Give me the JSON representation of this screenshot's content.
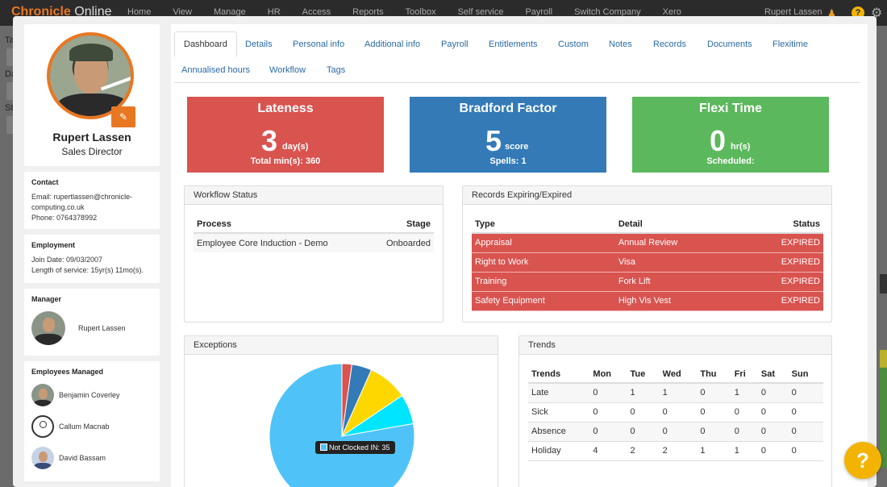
{
  "topnav": {
    "brand_primary": "Chronicle",
    "brand_secondary": " Online",
    "items": [
      "Home",
      "View",
      "Manage",
      "HR",
      "Access",
      "Reports",
      "Toolbox",
      "Self service",
      "Payroll",
      "Switch Company",
      "Xero"
    ],
    "user": "Rupert Lassen"
  },
  "background": {
    "left_labels": [
      "Ta",
      "Da",
      "Sta"
    ]
  },
  "profile": {
    "name": "Rupert Lassen",
    "job_title": "Sales Director",
    "contact_heading": "Contact",
    "email_line_1": "Email: rupertlassen@chronicle-",
    "email_line_2": "computing.co.uk",
    "phone": "Phone: 0764378992",
    "employment_heading": "Employment",
    "join_date": "Join Date: 09/03/2007",
    "length_of_service": "Length of service: 15yr(s) 11mo(s).",
    "manager_heading": "Manager",
    "manager_name": "Rupert Lassen",
    "employees_heading": "Employees Managed",
    "employees": [
      "Benjamin Coverley",
      "Callum Macnab",
      "David Bassam"
    ]
  },
  "tabs": {
    "row1": [
      "Dashboard",
      "Details",
      "Personal info",
      "Additional info",
      "Payroll",
      "Entitlements",
      "Custom",
      "Notes",
      "Records",
      "Documents",
      "Flexitime"
    ],
    "row2": [
      "Annualised hours",
      "Workflow",
      "Tags"
    ]
  },
  "stats": {
    "lateness": {
      "title": "Lateness",
      "value": "3",
      "unit": "day(s)",
      "sub": "Total min(s): 360",
      "color": "#d9534f"
    },
    "bradford": {
      "title": "Bradford Factor",
      "value": "5",
      "unit": "score",
      "sub": "Spells: 1",
      "color": "#337ab7"
    },
    "flexi": {
      "title": "Flexi Time",
      "value": "0",
      "unit": "hr(s)",
      "sub": "Scheduled:",
      "color": "#5cb85c"
    }
  },
  "workflow": {
    "heading": "Workflow Status",
    "columns": [
      "Process",
      "Stage"
    ],
    "rows": [
      [
        "Employee Core Induction - Demo",
        "Onboarded"
      ]
    ]
  },
  "records": {
    "heading": "Records Expiring/Expired",
    "columns": [
      "Type",
      "Detail",
      "Status"
    ],
    "rows": [
      [
        "Appraisal",
        "Annual Review",
        "EXPIRED"
      ],
      [
        "Right to Work",
        "Visa",
        "EXPIRED"
      ],
      [
        "Training",
        "Fork Lift",
        "EXPIRED"
      ],
      [
        "Safety Equipment",
        "High Vis Vest",
        "EXPIRED"
      ]
    ]
  },
  "exceptions": {
    "heading": "Exceptions",
    "tooltip": "Not Clocked IN: 35",
    "slices": [
      {
        "value": 35,
        "color": "#4fc3f7"
      },
      {
        "value": 1,
        "color": "#d9534f"
      },
      {
        "value": 2,
        "color": "#337ab7"
      },
      {
        "value": 4,
        "color": "#ffd700"
      },
      {
        "value": 3,
        "color": "#00e5ff"
      }
    ]
  },
  "trends": {
    "heading": "Trends",
    "columns": [
      "Trends",
      "Mon",
      "Tue",
      "Wed",
      "Thu",
      "Fri",
      "Sat",
      "Sun"
    ],
    "rows": [
      [
        "Late",
        "0",
        "1",
        "1",
        "0",
        "1",
        "0",
        "0"
      ],
      [
        "Sick",
        "0",
        "0",
        "0",
        "0",
        "0",
        "0",
        "0"
      ],
      [
        "Absence",
        "0",
        "0",
        "0",
        "0",
        "0",
        "0",
        "0"
      ],
      [
        "Holiday",
        "4",
        "2",
        "2",
        "1",
        "1",
        "0",
        "0"
      ]
    ]
  },
  "help": {
    "label": "?"
  }
}
